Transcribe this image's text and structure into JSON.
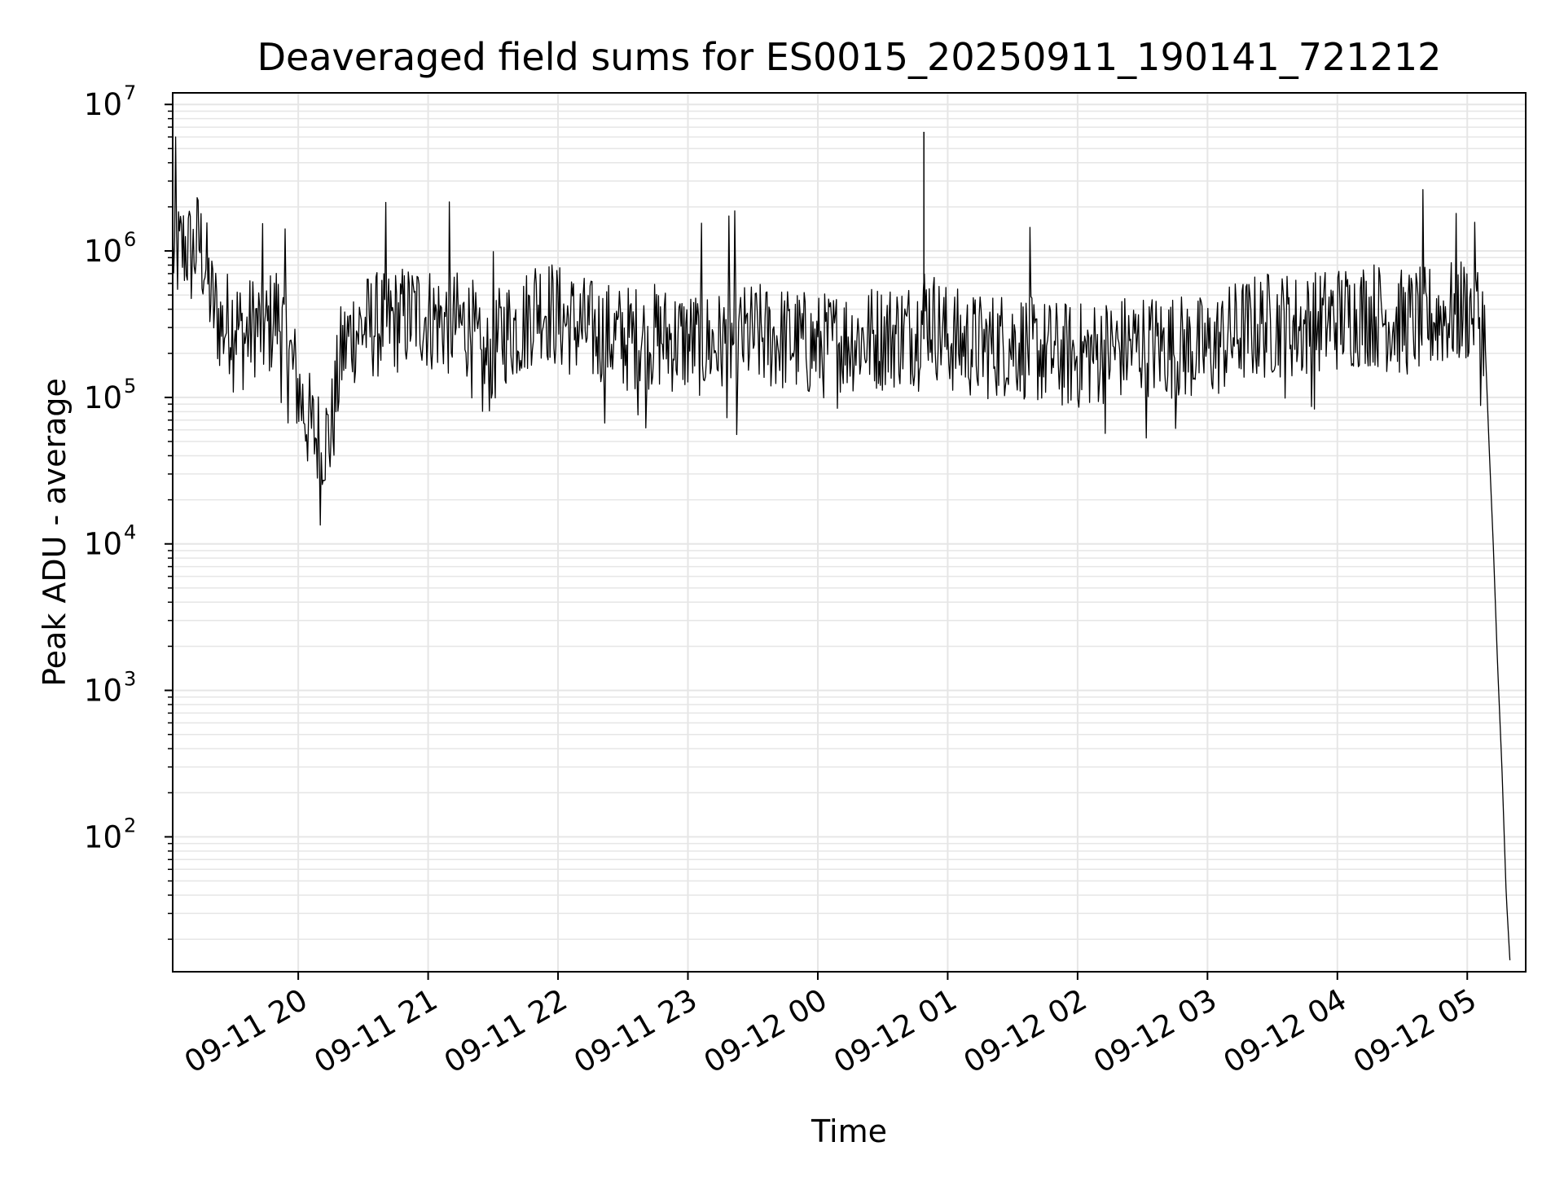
{
  "chart_data": {
    "type": "line",
    "title": "Deaveraged field sums for ES0015_20250911_190141_721212",
    "xlabel": "Time",
    "ylabel": "Peak ADU - average",
    "yscale": "log",
    "ylim": [
      12,
      12000000
    ],
    "xlim": [
      "2025-09-11 19:02",
      "2025-09-12 05:27"
    ],
    "grid": true,
    "line_color": "#000000",
    "grid_color": "#e6e6e6",
    "x_ticks": [
      {
        "value": "2025-09-11 20:00",
        "label": "09-11 20"
      },
      {
        "value": "2025-09-11 21:00",
        "label": "09-11 21"
      },
      {
        "value": "2025-09-11 22:00",
        "label": "09-11 22"
      },
      {
        "value": "2025-09-11 23:00",
        "label": "09-11 23"
      },
      {
        "value": "2025-09-12 00:00",
        "label": "09-12 00"
      },
      {
        "value": "2025-09-12 01:00",
        "label": "09-12 01"
      },
      {
        "value": "2025-09-12 02:00",
        "label": "09-12 02"
      },
      {
        "value": "2025-09-12 03:00",
        "label": "09-12 03"
      },
      {
        "value": "2025-09-12 04:00",
        "label": "09-12 04"
      },
      {
        "value": "2025-09-12 05:00",
        "label": "09-12 05"
      }
    ],
    "y_ticks": [
      {
        "value": 100,
        "base": "10",
        "exp": "2"
      },
      {
        "value": 1000,
        "base": "10",
        "exp": "3"
      },
      {
        "value": 10000,
        "base": "10",
        "exp": "4"
      },
      {
        "value": 100000,
        "base": "10",
        "exp": "5"
      },
      {
        "value": 1000000,
        "base": "10",
        "exp": "6"
      },
      {
        "value": 10000000,
        "base": "10",
        "exp": "7"
      }
    ],
    "series": [
      {
        "x": [
          "2025-09-11 19:02",
          "2025-09-11 19:05",
          "2025-09-11 19:08",
          "2025-09-11 19:11",
          "2025-09-11 19:14",
          "2025-09-11 19:17",
          "2025-09-11 19:20",
          "2025-09-11 19:25",
          "2025-09-11 19:30",
          "2025-09-11 19:35",
          "2025-09-11 19:40",
          "2025-09-11 19:45",
          "2025-09-11 19:50",
          "2025-09-11 19:55",
          "2025-09-11 19:58",
          "2025-09-11 20:02",
          "2025-09-11 20:06",
          "2025-09-11 20:10",
          "2025-09-11 20:15",
          "2025-09-11 20:20",
          "2025-09-11 20:25",
          "2025-09-11 20:30",
          "2025-09-11 20:40",
          "2025-09-11 20:50",
          "2025-09-11 20:55",
          "2025-09-11 21:00",
          "2025-09-11 21:10",
          "2025-09-11 21:20",
          "2025-09-11 21:25",
          "2025-09-11 21:30",
          "2025-09-11 21:35",
          "2025-09-11 21:45",
          "2025-09-11 21:50",
          "2025-09-11 21:55",
          "2025-09-11 22:00",
          "2025-09-11 22:15",
          "2025-09-11 22:30",
          "2025-09-11 22:45",
          "2025-09-11 23:00",
          "2025-09-11 23:15",
          "2025-09-11 23:30",
          "2025-09-11 23:45",
          "2025-09-12 00:00",
          "2025-09-12 00:15",
          "2025-09-12 00:30",
          "2025-09-12 00:45",
          "2025-09-12 00:50",
          "2025-09-12 00:55",
          "2025-09-12 01:00",
          "2025-09-12 01:15",
          "2025-09-12 01:30",
          "2025-09-12 01:45",
          "2025-09-12 02:00",
          "2025-09-12 02:15",
          "2025-09-12 02:30",
          "2025-09-12 02:45",
          "2025-09-12 03:00",
          "2025-09-12 03:15",
          "2025-09-12 03:30",
          "2025-09-12 03:45",
          "2025-09-12 04:00",
          "2025-09-12 04:15",
          "2025-09-12 04:30",
          "2025-09-12 04:45",
          "2025-09-12 05:00",
          "2025-09-12 05:05",
          "2025-09-12 05:08",
          "2025-09-12 05:10",
          "2025-09-12 05:12",
          "2025-09-12 05:14",
          "2025-09-12 05:16",
          "2025-09-12 05:18",
          "2025-09-12 05:20"
        ],
        "y": [
          1000000,
          950000,
          1100000,
          900000,
          1200000,
          800000,
          450000,
          300000,
          350000,
          250000,
          320000,
          280000,
          380000,
          220000,
          150000,
          90000,
          60000,
          50000,
          55000,
          200000,
          280000,
          300000,
          320000,
          350000,
          380000,
          350000,
          320000,
          300000,
          150000,
          200000,
          280000,
          320000,
          450000,
          400000,
          350000,
          280000,
          250000,
          260000,
          240000,
          230000,
          260000,
          250000,
          220000,
          250000,
          260000,
          280000,
          400000,
          300000,
          250000,
          220000,
          240000,
          200000,
          190000,
          210000,
          230000,
          220000,
          210000,
          280000,
          320000,
          300000,
          350000,
          380000,
          320000,
          350000,
          400000,
          380000,
          300000,
          50000,
          10000,
          1500,
          300,
          40,
          12
        ]
      }
    ]
  }
}
